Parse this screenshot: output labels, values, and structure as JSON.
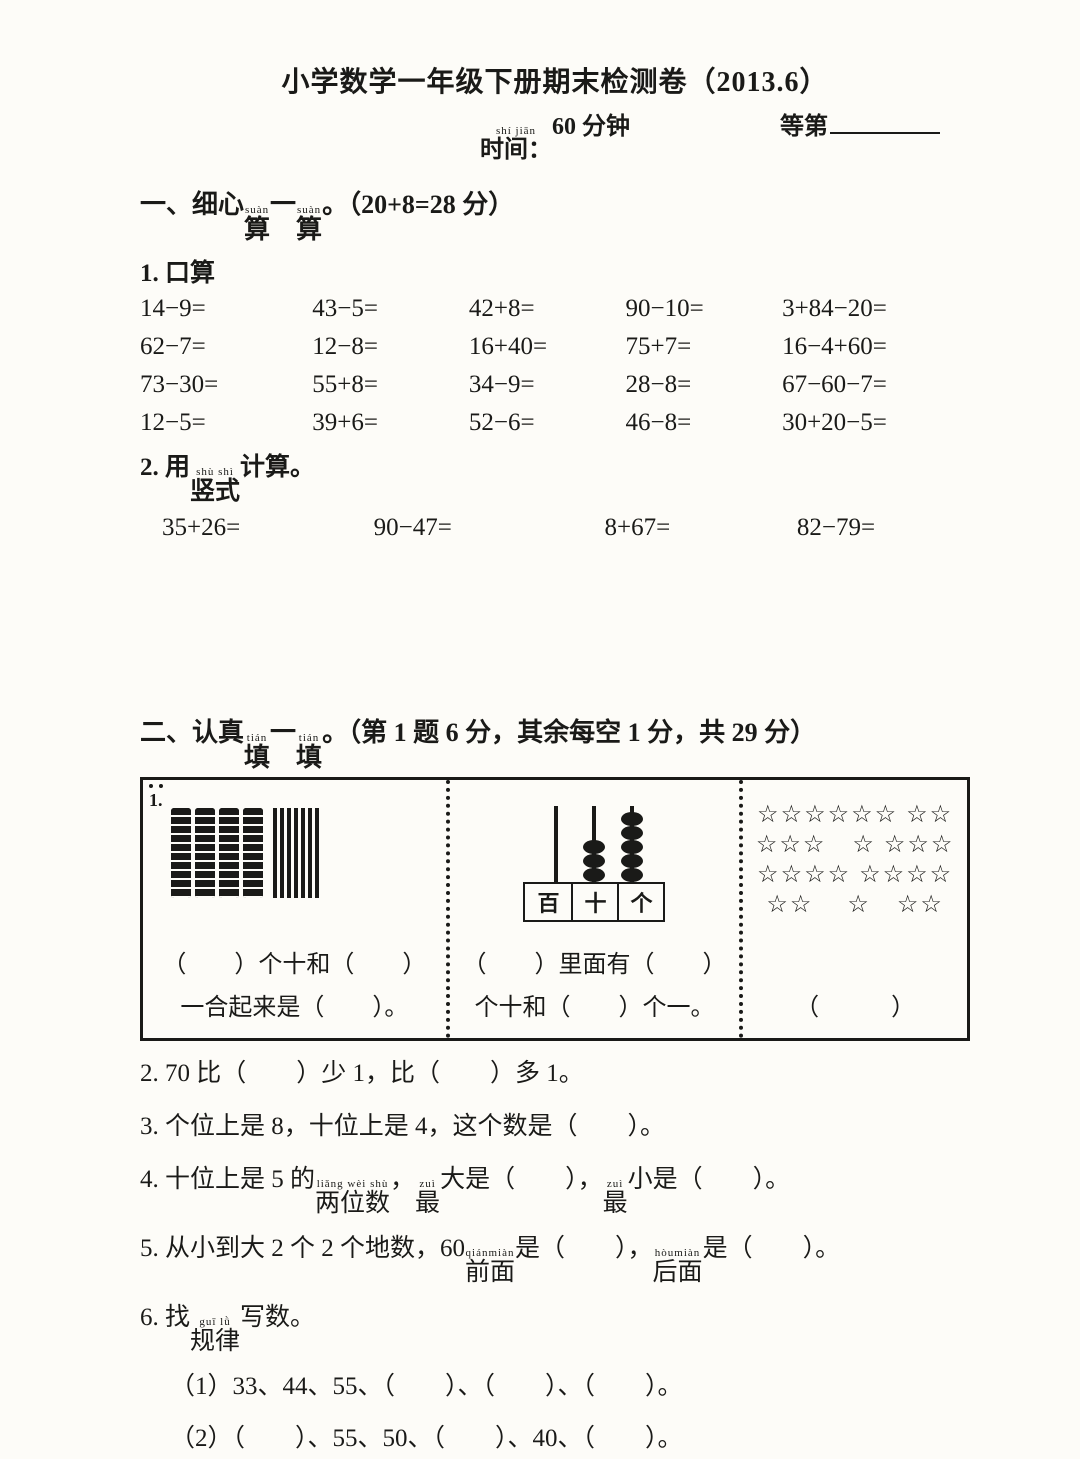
{
  "header": {
    "title": "小学数学一年级下册期末检测卷（2013.6）",
    "time_label_ruby": "shí jiān",
    "time_label": "时间：",
    "time_value": "60 分钟",
    "grade_label": "等第"
  },
  "section1": {
    "heading_pre": "一、细心",
    "heading_r1_rt": "suàn",
    "heading_r1": "算",
    "heading_mid": "一",
    "heading_r2_rt": "suàn",
    "heading_r2": "算",
    "heading_post": "。（20+8=28 分）",
    "sub1": "1. 口算",
    "grid": [
      [
        "14−9=",
        "43−5=",
        "42+8=",
        "90−10=",
        "3+84−20="
      ],
      [
        "62−7=",
        "12−8=",
        "16+40=",
        "75+7=",
        "16−4+60="
      ],
      [
        "73−30=",
        "55+8=",
        "34−9=",
        "28−8=",
        "67−60−7="
      ],
      [
        "12−5=",
        "39+6=",
        "52−6=",
        "46−8=",
        "30+20−5="
      ]
    ],
    "sub2_pre": "2. 用",
    "sub2_r_rt": "shù shì",
    "sub2_r": "竖式",
    "sub2_post": "计算。",
    "vertical": [
      "35+26=",
      "90−47=",
      "8+67=",
      "82−79="
    ]
  },
  "section2": {
    "heading_pre": "二、认真",
    "heading_r1_rt": "tián",
    "heading_r1": "填",
    "heading_mid": "一",
    "heading_r2_rt": "tián",
    "heading_r2": "填",
    "heading_post": "。（第 1 题 6 分，其余每空 1 分，共 29 分）",
    "q1_no": "1.",
    "cell1_line1": "（　　）个十和（　　）",
    "cell1_line2": "一合起来是（　　）。",
    "pv_labels": [
      "百",
      "十",
      "个"
    ],
    "cell2_line1": "（　　）里面有（　　）",
    "cell2_line2": "个十和（　　）个一。",
    "stars_text": "☆☆☆☆☆☆ ☆☆☆☆☆　☆ ☆☆☆☆☆☆☆ ☆☆☆☆☆☆ 　☆　☆☆",
    "cell3_line": "（　　　）",
    "q2": "2. 70 比（　　）少 1，比（　　）多 1。",
    "q3": "3. 个位上是 8，十位上是 4，这个数是（　　）。",
    "q4_pre": "4. 十位上是 5 的",
    "q4_r1_rt": "liǎng wèi shù",
    "q4_r1": "两位数",
    "q4_mid1": "，",
    "q4_r2_rt": "zuì",
    "q4_r2": "最",
    "q4_mid2": "大是（　　），",
    "q4_r3_rt": "zuì",
    "q4_r3": "最",
    "q4_post": "小是（　　）。",
    "q5_pre": "5. 从小到大 2 个 2 个地数，60",
    "q5_r1_rt": "qiánmiàn",
    "q5_r1": "前面",
    "q5_mid": "是（　　），",
    "q5_r2_rt": "hòumiàn",
    "q5_r2": "后面",
    "q5_post": "是（　　）。",
    "q6_pre": "6. 找",
    "q6_r_rt": "guī lǜ",
    "q6_r": "规律",
    "q6_post": "写数。",
    "q6_1": "（1）33、44、55、（　　）、（　　）、（　　）。",
    "q6_2": "（2）（　　）、55、50、（　　）、40、（　　）。"
  },
  "style": {
    "text_color": "#1a1a18",
    "bg_color": "#fdfcf8",
    "title_fontsize": 28,
    "body_fontsize": 25,
    "ruby_fontsize": 11
  }
}
